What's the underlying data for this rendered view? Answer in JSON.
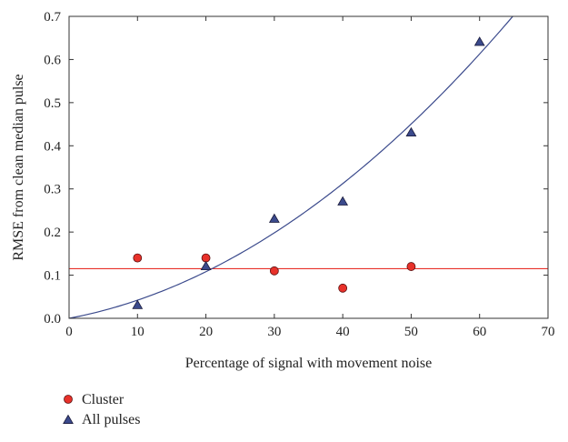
{
  "chart_data": {
    "type": "scatter",
    "xlabel": "Percentage of signal with movement noise",
    "ylabel": "RMSE from clean median pulse",
    "xlim": [
      0,
      70
    ],
    "ylim": [
      0,
      0.7
    ],
    "x_ticks": [
      "0",
      "10",
      "20",
      "30",
      "40",
      "50",
      "60",
      "70"
    ],
    "y_ticks": [
      "0.0",
      "0.1",
      "0.2",
      "0.3",
      "0.4",
      "0.5",
      "0.6",
      "0.7"
    ],
    "grid": false,
    "legend_position": "bottom-left",
    "series": [
      {
        "name": "Cluster",
        "marker": "circle",
        "color": "#e8312a",
        "x": [
          10,
          20,
          30,
          40,
          50
        ],
        "y": [
          0.14,
          0.14,
          0.11,
          0.07,
          0.12
        ]
      },
      {
        "name": "All pulses",
        "marker": "triangle",
        "color": "#3b4a8c",
        "x": [
          10,
          20,
          30,
          40,
          50,
          60
        ],
        "y": [
          0.03,
          0.12,
          0.23,
          0.27,
          0.43,
          0.64
        ]
      }
    ],
    "fits": [
      {
        "series": "Cluster",
        "kind": "constant",
        "value": 0.115,
        "color": "#e8312a"
      },
      {
        "series": "All pulses",
        "kind": "quadratic",
        "coefficients": [
          0,
          0.003,
          0.0001202
        ],
        "color": "#3b4a8c"
      }
    ]
  }
}
